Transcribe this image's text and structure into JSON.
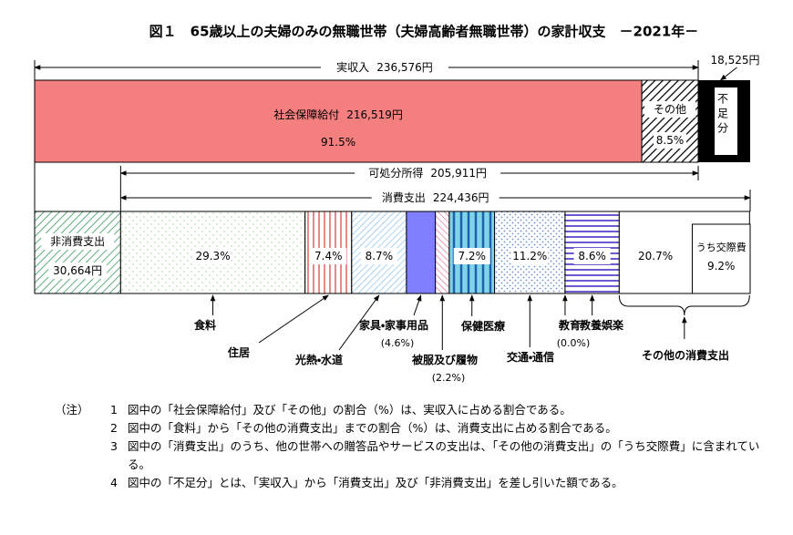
{
  "title": "図１　65歳以上の夫婦のみの無職世帯（夫婦高齢者無職世帯）の家計収支　－2021年－",
  "income": {
    "label": "実収入",
    "value": 236576,
    "value_label": "236,576円"
  },
  "social_security": {
    "label": "社会保障給付",
    "value": 216519,
    "value_label": "216,519円",
    "share": 91.5,
    "share_label": "91.5%"
  },
  "other_income": {
    "label": "その他",
    "share": 8.5,
    "share_label": "8.5%"
  },
  "deficit": {
    "label": "不足分",
    "value": 18525,
    "value_label": "18,525円"
  },
  "disposable": {
    "label": "可処分所得",
    "value": 205911,
    "value_label": "205,911円"
  },
  "consumption": {
    "label": "消費支出",
    "value": 224436,
    "value_label": "224,436円"
  },
  "non_consumption": {
    "label": "非消費支出",
    "value": 30664,
    "value_label": "30,664円"
  },
  "items": [
    {
      "label": "食料",
      "share": 29.3,
      "share_label": "29.3%"
    },
    {
      "label": "住居",
      "share": 7.4,
      "share_label": "7.4%"
    },
    {
      "label": "光熱・水道",
      "share": 8.7,
      "share_label": "8.7%"
    },
    {
      "label": "家具・家事用品",
      "share": 4.6,
      "share_label": "(4.6%)"
    },
    {
      "label": "被服及び履物",
      "share": 2.2,
      "share_label": "(2.2%)"
    },
    {
      "label": "保健医療",
      "share": 7.2,
      "share_label": "7.2%"
    },
    {
      "label": "交通・通信",
      "share": 11.2,
      "share_label": "11.2%"
    },
    {
      "label": "教育",
      "share": 0.0,
      "share_label": "(0.0%)"
    },
    {
      "label": "教養娯楽",
      "share": 8.6,
      "share_label": "8.6%"
    },
    {
      "label": "その他の消費支出",
      "share": 20.7,
      "share_label": "20.7%"
    }
  ],
  "entertainment": {
    "label": "うち交際費",
    "share": 9.2,
    "share_label": "9.2%"
  },
  "notes_heading": "（注）",
  "notes": [
    {
      "number": "1",
      "text": "図中の「社会保障給付」及び「その他」の割合（%）は、実収入に占める割合である。"
    },
    {
      "number": "2",
      "text": "図中の「食料」から「その他の消費支出」までの割合（%）は、消費支出に占める割合である。"
    },
    {
      "number": "3",
      "text": "図中の「消費支出」のうち、他の世帯への贈答品やサービスの支出は、「その他の消費支出」の「うち交際費」に含まれている。"
    },
    {
      "number": "4",
      "text": "図中の「不足分」とは、「実収入」から「消費支出」及び「非消費支出」を差し引いた額である。"
    }
  ]
}
